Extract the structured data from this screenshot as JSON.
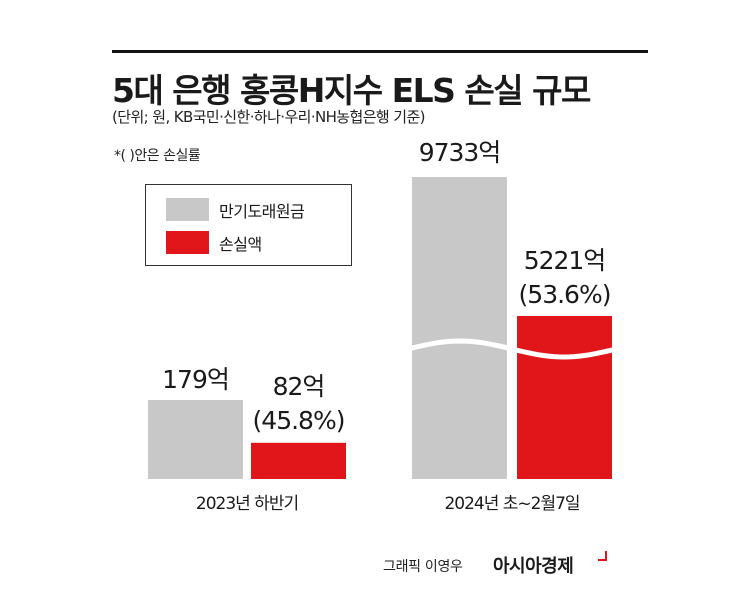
{
  "header": {
    "title": "5대 은행 홍콩H지수 ELS 손실 규모",
    "subtitle": "(단위; 원, KB국민·신한·하나·우리·NH농협은행 기준)",
    "note": "*(   )안은 손실률"
  },
  "legend": {
    "items": [
      {
        "label": "만기도래원금",
        "color": "#c8c8c8"
      },
      {
        "label": "손실액",
        "color": "#e0161b"
      }
    ]
  },
  "chart_data": {
    "type": "bar",
    "categories": [
      "2023년 하반기",
      "2024년 초~2월7일"
    ],
    "series": [
      {
        "name": "만기도래원금",
        "values": [
          179,
          9733
        ],
        "labels": [
          "179억",
          "9733억"
        ],
        "color": "#c8c8c8"
      },
      {
        "name": "손실액",
        "values": [
          82,
          5221
        ],
        "labels": [
          "82억",
          "5221억"
        ],
        "color": "#e0161b"
      }
    ],
    "loss_rate_labels": [
      "(45.8%)",
      "(53.6%)"
    ],
    "axis_break": true,
    "grid": false,
    "legend_position": "top-left"
  },
  "footer": {
    "credit": "그래픽 이영우",
    "brand": "아시아경제"
  }
}
